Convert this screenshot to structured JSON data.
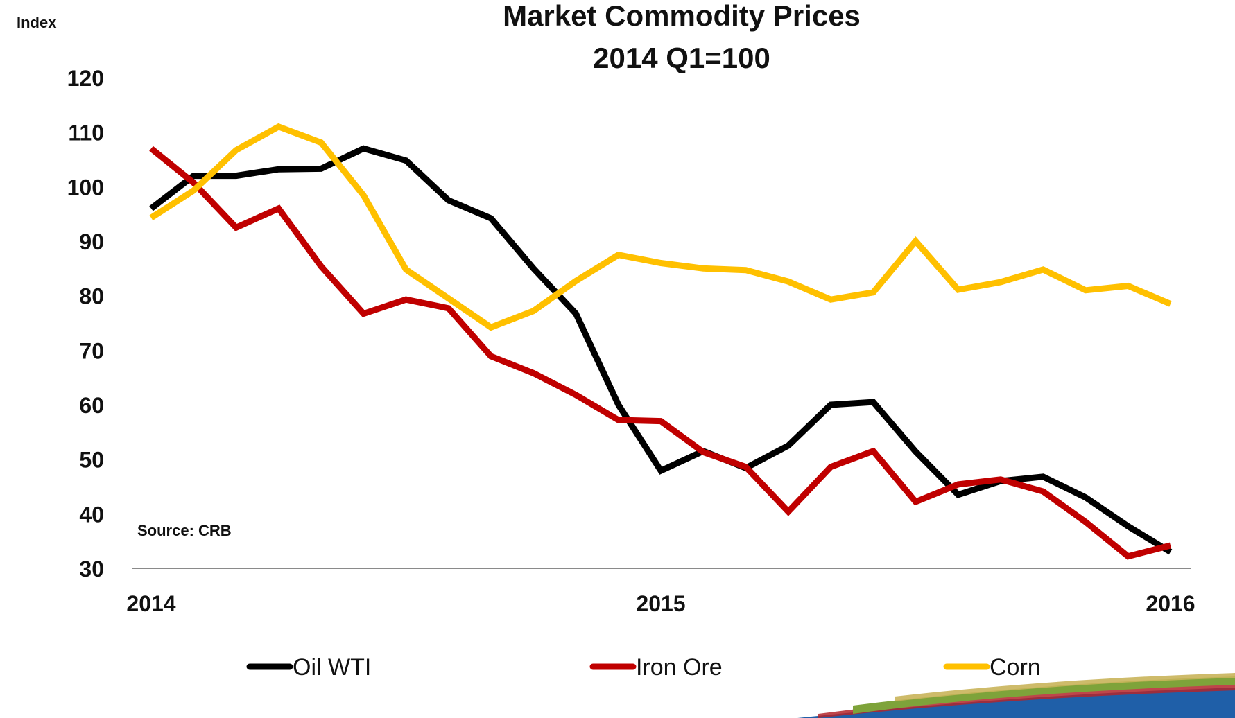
{
  "chart_data": {
    "type": "line",
    "title": "Market Commodity Prices",
    "subtitle": "2014 Q1=100",
    "ylabel": "Index",
    "xlabel": "",
    "ylim": [
      30,
      120
    ],
    "yticks": [
      "120",
      "110",
      "100",
      "90",
      "80",
      "70",
      "60",
      "50",
      "40",
      "30"
    ],
    "xticks": [
      "2014",
      "2015",
      "2016"
    ],
    "xrange": [
      0,
      24
    ],
    "grid": false,
    "legend_position": "bottom",
    "annotation": "Source:  CRB",
    "series": [
      {
        "name": "Oil WTI",
        "color": "#000000",
        "x": [
          0,
          1,
          2,
          3,
          4,
          5,
          6,
          7,
          8,
          9,
          10,
          11,
          12,
          13,
          14,
          15,
          16,
          17,
          18,
          19,
          20,
          21,
          22,
          23,
          24
        ],
        "values": [
          96,
          102,
          102,
          103.2,
          103.3,
          107,
          104.8,
          97.5,
          94.2,
          85,
          76.7,
          60,
          47.9,
          51.5,
          48.4,
          52.5,
          60,
          60.5,
          51.4,
          43.5,
          46,
          46.8,
          43,
          37.7,
          33
        ]
      },
      {
        "name": "Iron Ore",
        "color": "#C00000",
        "x": [
          0,
          1,
          2,
          3,
          4,
          5,
          6,
          7,
          8,
          9,
          10,
          11,
          12,
          13,
          14,
          15,
          16,
          17,
          18,
          19,
          20,
          21,
          22,
          23,
          24
        ],
        "values": [
          107,
          100.7,
          92.5,
          96,
          85.4,
          76.7,
          79.3,
          77.7,
          68.9,
          65.8,
          61.8,
          57.2,
          57,
          51.3,
          48.6,
          40.4,
          48.6,
          51.5,
          42.2,
          45.4,
          46.3,
          44.1,
          38.5,
          32.2,
          34.2
        ]
      },
      {
        "name": "Corn",
        "color": "#FFC000",
        "x": [
          0,
          1,
          2,
          3,
          4,
          5,
          6,
          7,
          8,
          9,
          10,
          11,
          12,
          13,
          14,
          15,
          16,
          17,
          18,
          19,
          20,
          21,
          22,
          23,
          24
        ],
        "values": [
          94.3,
          99.3,
          106.7,
          111,
          108.1,
          98.4,
          84.8,
          79.5,
          74.2,
          77.2,
          82.7,
          87.5,
          86,
          85,
          84.7,
          82.6,
          79.3,
          80.6,
          90,
          81.1,
          82.5,
          84.8,
          81,
          81.8,
          78.5
        ]
      }
    ]
  }
}
